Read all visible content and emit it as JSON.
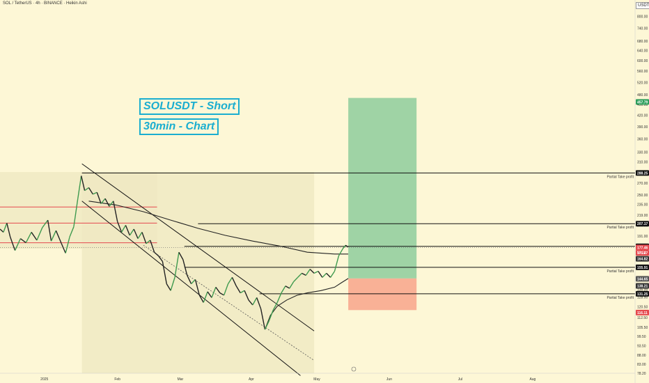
{
  "header": {
    "title": "SOL / TetherUS · 4h · BINANCE · Heikin Ashi",
    "currency": "USDT"
  },
  "annotations": {
    "line1": "SOLUSDT - Short",
    "line2": "30min - Chart"
  },
  "colors": {
    "background": "#fdf7d6",
    "profit_zone": "#9fd3a5",
    "loss_zone": "#f9b196",
    "annotation": "#1aaed0",
    "red_line": "#e5484d",
    "up_candle": "#3e9a4e",
    "down_candle": "#222222",
    "price_badge": "#ffffff"
  },
  "chart_data": {
    "type": "line",
    "scale": "log",
    "ylim": [
      78.2,
      850
    ],
    "x_ticks": [
      "2025",
      "Feb",
      "Mar",
      "Apr",
      "May",
      "Jun",
      "Jul",
      "Aug"
    ],
    "y_ticks": [
      800,
      740,
      680,
      640,
      600,
      560,
      520,
      480,
      450,
      420,
      390,
      360,
      330,
      310,
      290,
      270,
      250,
      235,
      219,
      205,
      191,
      178,
      166,
      155,
      145,
      135,
      128.5,
      120.5,
      112.5,
      105.5,
      99.5,
      93.5,
      88,
      83,
      78.2
    ],
    "y_tick_labels": [
      "800.00",
      "740.00",
      "680.00",
      "640.00",
      "600.00",
      "560.00",
      "520.00",
      "480.00",
      "450.00",
      "420.00",
      "390.00",
      "360.00",
      "330.00",
      "310.00",
      "290.00",
      "270.00",
      "250.00",
      "235.00",
      "219.00",
      "205.00",
      "191.00",
      "178.00",
      "166.00",
      "155.00",
      "145.00",
      "135.00",
      "128.50",
      "120.50",
      "112.50",
      "105.50",
      "99.50",
      "93.50",
      "88.00",
      "83.00",
      "78.20"
    ],
    "price_series": [
      {
        "t": 0,
        "p": 200
      },
      {
        "t": 0.5,
        "p": 196
      },
      {
        "t": 1,
        "p": 208
      },
      {
        "t": 1.5,
        "p": 190
      },
      {
        "t": 2.2,
        "p": 174
      },
      {
        "t": 3,
        "p": 188
      },
      {
        "t": 3.8,
        "p": 183
      },
      {
        "t": 4.6,
        "p": 196
      },
      {
        "t": 5.4,
        "p": 186
      },
      {
        "t": 6.2,
        "p": 202
      },
      {
        "t": 7,
        "p": 212
      },
      {
        "t": 7.5,
        "p": 185
      },
      {
        "t": 8.2,
        "p": 198
      },
      {
        "t": 9,
        "p": 182
      },
      {
        "t": 9.6,
        "p": 171
      },
      {
        "t": 10.2,
        "p": 190
      },
      {
        "t": 10.8,
        "p": 203
      },
      {
        "t": 11.4,
        "p": 244
      },
      {
        "t": 11.9,
        "p": 283
      },
      {
        "t": 12.4,
        "p": 257
      },
      {
        "t": 13,
        "p": 262
      },
      {
        "t": 13.6,
        "p": 251
      },
      {
        "t": 14.2,
        "p": 254
      },
      {
        "t": 14.8,
        "p": 236
      },
      {
        "t": 15.4,
        "p": 244
      },
      {
        "t": 16,
        "p": 232
      },
      {
        "t": 16.6,
        "p": 240
      },
      {
        "t": 17.2,
        "p": 210
      },
      {
        "t": 17.8,
        "p": 196
      },
      {
        "t": 18.4,
        "p": 205
      },
      {
        "t": 19,
        "p": 192
      },
      {
        "t": 19.6,
        "p": 200
      },
      {
        "t": 20.2,
        "p": 188
      },
      {
        "t": 20.8,
        "p": 196
      },
      {
        "t": 21.4,
        "p": 182
      },
      {
        "t": 22,
        "p": 186
      },
      {
        "t": 22.6,
        "p": 172
      },
      {
        "t": 23.2,
        "p": 168
      },
      {
        "t": 23.8,
        "p": 162
      },
      {
        "t": 24.4,
        "p": 140
      },
      {
        "t": 25,
        "p": 134
      },
      {
        "t": 25.6,
        "p": 146
      },
      {
        "t": 26.2,
        "p": 172
      },
      {
        "t": 26.8,
        "p": 164
      },
      {
        "t": 27.4,
        "p": 148
      },
      {
        "t": 28,
        "p": 140
      },
      {
        "t": 28.6,
        "p": 144
      },
      {
        "t": 29.2,
        "p": 130
      },
      {
        "t": 29.8,
        "p": 124
      },
      {
        "t": 30.4,
        "p": 133
      },
      {
        "t": 31,
        "p": 128
      },
      {
        "t": 31.6,
        "p": 137
      },
      {
        "t": 32.2,
        "p": 132
      },
      {
        "t": 32.8,
        "p": 130
      },
      {
        "t": 33.4,
        "p": 140
      },
      {
        "t": 34,
        "p": 146
      },
      {
        "t": 34.6,
        "p": 138
      },
      {
        "t": 35.2,
        "p": 132
      },
      {
        "t": 35.8,
        "p": 134
      },
      {
        "t": 36.4,
        "p": 126
      },
      {
        "t": 37,
        "p": 122
      },
      {
        "t": 37.6,
        "p": 128
      },
      {
        "t": 38.2,
        "p": 119
      },
      {
        "t": 38.8,
        "p": 104
      },
      {
        "t": 39.4,
        "p": 110
      },
      {
        "t": 40,
        "p": 118
      },
      {
        "t": 40.6,
        "p": 124
      },
      {
        "t": 41.2,
        "p": 132
      },
      {
        "t": 41.8,
        "p": 138
      },
      {
        "t": 42.4,
        "p": 136
      },
      {
        "t": 43,
        "p": 142
      },
      {
        "t": 43.6,
        "p": 146
      },
      {
        "t": 44.2,
        "p": 150
      },
      {
        "t": 44.8,
        "p": 148
      },
      {
        "t": 45.4,
        "p": 154
      },
      {
        "t": 46,
        "p": 150
      },
      {
        "t": 46.6,
        "p": 152
      },
      {
        "t": 47.2,
        "p": 146
      },
      {
        "t": 47.8,
        "p": 150
      },
      {
        "t": 48.4,
        "p": 146
      },
      {
        "t": 49,
        "p": 152
      },
      {
        "t": 49.6,
        "p": 168
      },
      {
        "t": 50.2,
        "p": 176
      },
      {
        "t": 50.6,
        "p": 180
      },
      {
        "t": 51,
        "p": 178
      }
    ],
    "time_axis": {
      "t_min": 0,
      "t_max": 93,
      "t_last": 51
    },
    "moving_average_slow": [
      {
        "t": 13,
        "p": 240
      },
      {
        "t": 17,
        "p": 234
      },
      {
        "t": 21,
        "p": 224
      },
      {
        "t": 25,
        "p": 212
      },
      {
        "t": 29,
        "p": 201
      },
      {
        "t": 33,
        "p": 192
      },
      {
        "t": 37,
        "p": 185
      },
      {
        "t": 41,
        "p": 179
      },
      {
        "t": 45,
        "p": 172
      },
      {
        "t": 49,
        "p": 170
      },
      {
        "t": 51,
        "p": 170
      }
    ],
    "moving_average_fast": [
      {
        "t": 38.8,
        "p": 104
      },
      {
        "t": 39.6,
        "p": 114
      },
      {
        "t": 40.6,
        "p": 121
      },
      {
        "t": 42,
        "p": 126
      },
      {
        "t": 43.5,
        "p": 130
      },
      {
        "t": 45,
        "p": 132
      },
      {
        "t": 47,
        "p": 134
      },
      {
        "t": 49,
        "p": 137
      },
      {
        "t": 50,
        "p": 141
      },
      {
        "t": 51,
        "p": 145
      }
    ],
    "channel": {
      "upper": [
        {
          "t": 12,
          "p": 306
        },
        {
          "t": 46,
          "p": 103
        }
      ],
      "lower": [
        {
          "t": 12,
          "p": 240
        },
        {
          "t": 44,
          "p": 77
        }
      ],
      "middle_dashed": [
        {
          "t": 21,
          "p": 180
        },
        {
          "t": 46,
          "p": 85
        }
      ]
    },
    "zones": [
      {
        "t0": 0,
        "t1": 23,
        "p0": 176,
        "p1": 290,
        "color": "#efe9c2"
      },
      {
        "t0": 12,
        "t1": 46,
        "p0": 78.2,
        "p1": 290,
        "color": "#efe9c2"
      }
    ],
    "red_lines": [
      {
        "t0": 0,
        "t1": 23,
        "p": 231
      },
      {
        "t0": 0,
        "t1": 23,
        "p": 208
      },
      {
        "t0": 0,
        "t1": 23,
        "p": 183
      }
    ],
    "horizontal_levels": [
      {
        "p": 288.25,
        "t0": 12,
        "label": "Partial Take profit",
        "badge": "288.25"
      },
      {
        "p": 207.17,
        "t0": 29,
        "label": "Partial Take profit",
        "badge": "207.17"
      },
      {
        "p": 178.73,
        "t0": 27,
        "label": "",
        "badge": "178.73"
      },
      {
        "p": 155.91,
        "t0": 27,
        "label": "Partial Take profit",
        "badge": "155.91"
      },
      {
        "p": 131.25,
        "t0": 38,
        "label": "Partial Take profit",
        "badge": "131.25"
      }
    ],
    "current_price": {
      "p": 177.46,
      "badge": "177.46",
      "countdown": "50:04"
    },
    "side_badges": [
      {
        "p": 457.79,
        "text": "457.79",
        "color": "#2e9e5b"
      },
      {
        "p": 171.27,
        "text": "171.27",
        "color": "#e5484d"
      },
      {
        "p": 164.82,
        "text": "164.82",
        "color": "#333333"
      },
      {
        "p": 144.65,
        "text": "144.65",
        "color": "#555555"
      },
      {
        "p": 138.21,
        "text": "138.21",
        "color": "#333333"
      },
      {
        "p": 116.11,
        "text": "116.11",
        "color": "#e5484d"
      }
    ],
    "position": {
      "t0": 51,
      "t1": 61,
      "target": 470,
      "entry": 145,
      "stop": 118
    }
  }
}
